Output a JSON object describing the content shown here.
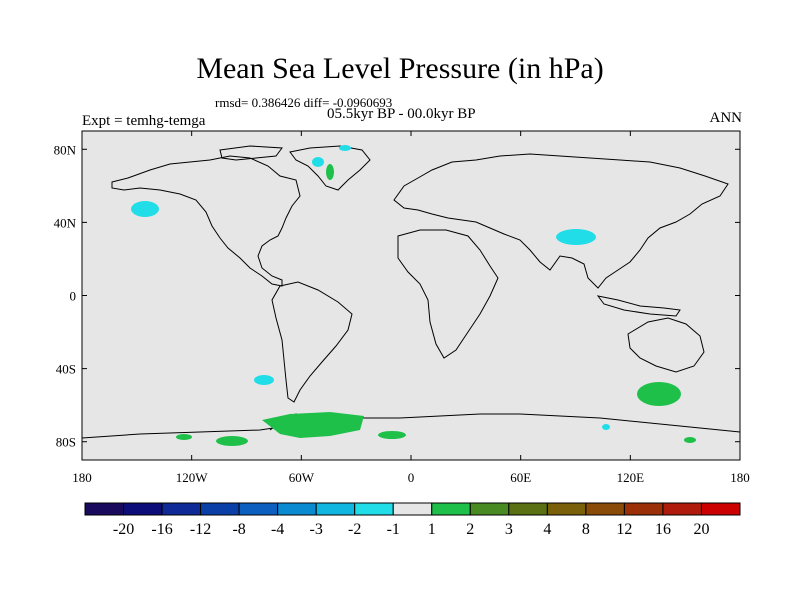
{
  "header": {
    "title": "Mean Sea Level Pressure (in hPa)",
    "stats": "rmsd= 0.386426 diff= -0.0960693",
    "experiment": "Expt = temhg-temga",
    "period": "05.5kyr BP - 00.0kyr BP",
    "season": "ANN"
  },
  "map": {
    "lon_ticks": [
      "180",
      "120W",
      "60W",
      "0",
      "60E",
      "120E",
      "180"
    ],
    "lat_ticks": [
      "80N",
      "40N",
      "0",
      "40S",
      "80S"
    ],
    "background_color": "#e6e6e6",
    "coast_color": "#000000"
  },
  "colorbar": {
    "colors": [
      "#1a0a5e",
      "#0d0d7a",
      "#0f2a96",
      "#0a3fa8",
      "#0a5fbf",
      "#0a8ad0",
      "#10b5e0",
      "#20dde8",
      "#e6e6e6",
      "#1ec04a",
      "#4a8a22",
      "#5a7012",
      "#7a6008",
      "#8a4a08",
      "#9a2f08",
      "#b01a0a",
      "#cc0000"
    ],
    "labels": [
      "-20",
      "-16",
      "-12",
      "-8",
      "-4",
      "-3",
      "-2",
      "-1",
      "1",
      "2",
      "3",
      "4",
      "8",
      "12",
      "16",
      "20"
    ]
  },
  "anomalies": [
    {
      "region": "North Pacific",
      "class": "-2 to -1"
    },
    {
      "region": "Greenland",
      "class": "-2 to -1"
    },
    {
      "region": "Tibet",
      "class": "-2 to -1"
    },
    {
      "region": "Patagonia",
      "class": "-2 to -1"
    },
    {
      "region": "Southern Ocean south of Australia",
      "class": "1 to 2"
    },
    {
      "region": "Weddell Sea / Antarctica",
      "class": "1 to 2"
    }
  ]
}
